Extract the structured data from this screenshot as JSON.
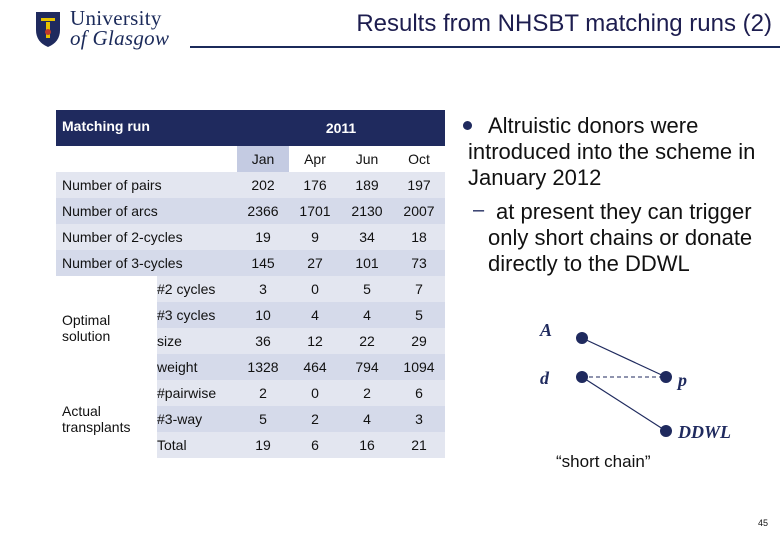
{
  "logo": {
    "line1": "University",
    "line2": "of Glasgow"
  },
  "title": "Results from NHSBT matching runs (2)",
  "table": {
    "header_left": "Matching run",
    "header_year": "2011",
    "months": [
      "Jan",
      "Apr",
      "Jun",
      "Oct"
    ],
    "rows": [
      {
        "label": "Number of pairs",
        "values": [
          "202",
          "176",
          "189",
          "197"
        ]
      },
      {
        "label": "Number of arcs",
        "values": [
          "2366",
          "1701",
          "2130",
          "2007"
        ]
      },
      {
        "label": "Number of 2-cycles",
        "values": [
          "19",
          "9",
          "34",
          "18"
        ]
      },
      {
        "label": "Number of 3-cycles",
        "values": [
          "145",
          "27",
          "101",
          "73"
        ]
      }
    ],
    "optimal_label": "Optimal solution",
    "optimal_rows": [
      {
        "label": "#2 cycles",
        "values": [
          "3",
          "0",
          "5",
          "7"
        ]
      },
      {
        "label": "#3 cycles",
        "values": [
          "10",
          "4",
          "4",
          "5"
        ]
      },
      {
        "label": "size",
        "values": [
          "36",
          "12",
          "22",
          "29"
        ]
      },
      {
        "label": "weight",
        "values": [
          "1328",
          "464",
          "794",
          "1094"
        ]
      }
    ],
    "actual_label": "Actual transplants",
    "actual_rows": [
      {
        "label": "#pairwise",
        "values": [
          "2",
          "0",
          "2",
          "6"
        ]
      },
      {
        "label": "#3-way",
        "values": [
          "5",
          "2",
          "4",
          "3"
        ]
      },
      {
        "label": "Total",
        "values": [
          "19",
          "6",
          "16",
          "21"
        ]
      }
    ]
  },
  "bullet": "Altruistic donors were introduced into the scheme in January 2012",
  "sub_bullet": "at present they can trigger only short chains or donate directly to the DDWL",
  "diagram": {
    "node_a": "A",
    "node_d": "d",
    "node_p": "p",
    "node_ddwl": "DDWL",
    "caption": "“short chain”"
  },
  "page_number": "45",
  "colors": {
    "accent": "#1f2a5e",
    "row": "#e3e6f0",
    "row_alt": "#d5daea"
  }
}
